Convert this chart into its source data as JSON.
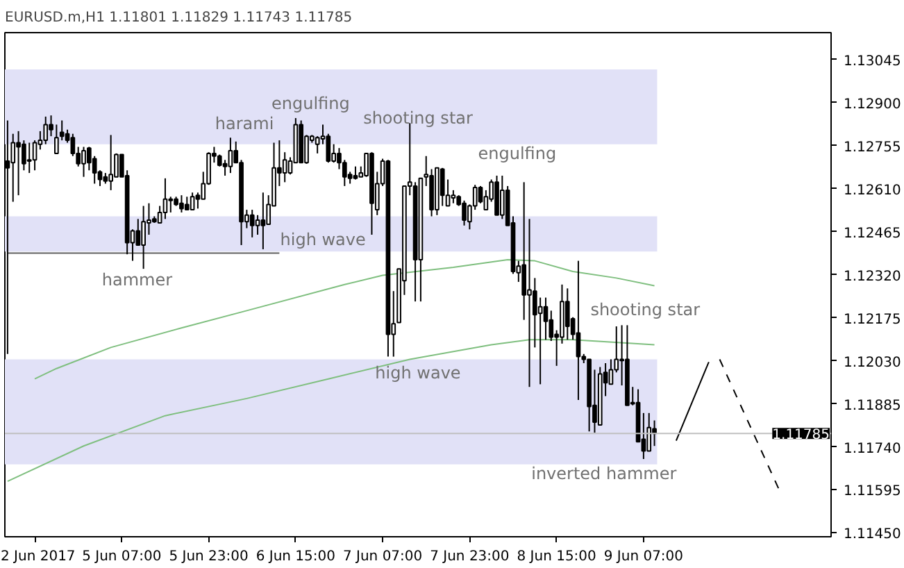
{
  "chart_data": {
    "type": "candlestick",
    "title": "EURUSD.m,H1  1.11801 1.11829 1.11743 1.11785",
    "color": "#000000",
    "categories": [
      null,
      null,
      null,
      null,
      null,
      "2 Jun 2017",
      null,
      null,
      null,
      null,
      null,
      null,
      null,
      null,
      null,
      null,
      null,
      null,
      null,
      null,
      null,
      "5 Jun 07:00",
      null,
      null,
      null,
      null,
      null,
      null,
      null,
      null,
      null,
      null,
      null,
      null,
      null,
      null,
      null,
      "5 Jun 23:00",
      null,
      null,
      null,
      null,
      null,
      null,
      null,
      null,
      null,
      null,
      null,
      null,
      null,
      null,
      null,
      "6 Jun 15:00",
      null,
      null,
      null,
      null,
      null,
      null,
      null,
      null,
      null,
      null,
      null,
      null,
      null,
      null,
      null,
      "7 Jun 07:00",
      null,
      null,
      null,
      null,
      null,
      null,
      null,
      null,
      null,
      null,
      null,
      null,
      null,
      null,
      null,
      "7 Jun 23:00",
      null,
      null,
      null,
      null,
      null,
      null,
      null,
      null,
      null,
      null,
      null,
      null,
      null,
      null,
      null,
      "8 Jun 15:00",
      null,
      null,
      null,
      null,
      null,
      null,
      null,
      null,
      null,
      null,
      null,
      null,
      null,
      null,
      null,
      "9 Jun 07:00",
      null,
      null,
      null,
      null,
      null,
      null,
      null,
      null,
      null,
      null,
      null,
      null,
      null,
      null,
      null,
      null,
      null,
      null,
      null,
      null,
      null,
      null,
      null,
      null,
      null,
      null,
      null,
      null,
      null,
      null,
      null,
      null,
      null,
      null
    ],
    "ohlc": [
      [
        1.12703,
        1.1284,
        1.12053,
        1.1268
      ],
      [
        1.12698,
        1.12795,
        1.12566,
        1.12765
      ],
      [
        1.12765,
        1.12804,
        1.12588,
        1.12751
      ],
      [
        1.1276,
        1.12773,
        1.12672,
        1.12694
      ],
      [
        1.12703,
        1.12765,
        1.12663,
        1.12707
      ],
      [
        1.12707,
        1.12773,
        1.12672,
        1.12765
      ],
      [
        1.1276,
        1.12804,
        1.12742,
        1.12773
      ],
      [
        1.12773,
        1.12853,
        1.1276,
        1.12826
      ],
      [
        1.12826,
        1.12857,
        1.12787,
        1.12809
      ],
      [
        1.12729,
        1.12826,
        1.12729,
        1.12782
      ],
      [
        1.128,
        1.1284,
        1.12773,
        1.12787
      ],
      [
        1.12795,
        1.12809,
        1.12765,
        1.12773
      ],
      [
        1.12782,
        1.12795,
        1.1272,
        1.12729
      ],
      [
        1.12729,
        1.12751,
        1.12685,
        1.12694
      ],
      [
        1.12694,
        1.12751,
        1.1265,
        1.12738
      ],
      [
        1.12747,
        1.12751,
        1.12672,
        1.12698
      ],
      [
        1.12711,
        1.1272,
        1.12627,
        1.12663
      ],
      [
        1.12667,
        1.12672,
        1.12619,
        1.12641
      ],
      [
        1.1265,
        1.12663,
        1.12627,
        1.12636
      ],
      [
        1.12636,
        1.12791,
        1.12605,
        1.12658
      ],
      [
        1.1265,
        1.12729,
        1.1265,
        1.12725
      ],
      [
        1.12725,
        1.12725,
        1.1265,
        1.1265
      ],
      [
        1.12654,
        1.12672,
        1.12389,
        1.12428
      ],
      [
        1.12428,
        1.12473,
        1.12367,
        1.12468
      ],
      [
        1.12468,
        1.12508,
        1.1242,
        1.1242
      ],
      [
        1.1242,
        1.12552,
        1.1234,
        1.12499
      ],
      [
        1.12495,
        1.12561,
        1.12455,
        1.12504
      ],
      [
        1.12508,
        1.12517,
        1.12495,
        1.12499
      ],
      [
        1.12495,
        1.12552,
        1.12495,
        1.1253
      ],
      [
        1.1253,
        1.12645,
        1.12508,
        1.12575
      ],
      [
        1.12575,
        1.12583,
        1.1253,
        1.1257
      ],
      [
        1.12575,
        1.12583,
        1.12552,
        1.12557
      ],
      [
        1.12561,
        1.12588,
        1.1253,
        1.12543
      ],
      [
        1.12557,
        1.12583,
        1.12539,
        1.12539
      ],
      [
        1.12539,
        1.12597,
        1.12539,
        1.12583
      ],
      [
        1.12588,
        1.12597,
        1.12543,
        1.12575
      ],
      [
        1.12575,
        1.12667,
        1.12575,
        1.12627
      ],
      [
        1.12627,
        1.12733,
        1.12623,
        1.12729
      ],
      [
        1.12729,
        1.12751,
        1.12698,
        1.1272
      ],
      [
        1.1272,
        1.12725,
        1.12685,
        1.12689
      ],
      [
        1.12694,
        1.12707,
        1.12654,
        1.12685
      ],
      [
        1.12685,
        1.12782,
        1.12663,
        1.12738
      ],
      [
        1.12738,
        1.12769,
        1.12698,
        1.12698
      ],
      [
        1.12698,
        1.12707,
        1.1242,
        1.12499
      ],
      [
        1.12499,
        1.12539,
        1.12477,
        1.12521
      ],
      [
        1.12521,
        1.12539,
        1.12446,
        1.12486
      ],
      [
        1.12486,
        1.12521,
        1.12455,
        1.12504
      ],
      [
        1.12504,
        1.12597,
        1.12406,
        1.12486
      ],
      [
        1.1249,
        1.12588,
        1.1249,
        1.12557
      ],
      [
        1.12552,
        1.12765,
        1.12552,
        1.1268
      ],
      [
        1.1268,
        1.12773,
        1.12619,
        1.12663
      ],
      [
        1.12663,
        1.12733,
        1.12632,
        1.12707
      ],
      [
        1.12663,
        1.12716,
        1.12658,
        1.12703
      ],
      [
        1.12698,
        1.12848,
        1.12698,
        1.12826
      ],
      [
        1.12826,
        1.1284,
        1.12698,
        1.12698
      ],
      [
        1.12698,
        1.12791,
        1.12694,
        1.12787
      ],
      [
        1.12773,
        1.12791,
        1.12765,
        1.12787
      ],
      [
        1.1276,
        1.12787,
        1.12729,
        1.12782
      ],
      [
        1.12778,
        1.12826,
        1.1276,
        1.12787
      ],
      [
        1.12787,
        1.12795,
        1.12698,
        1.12703
      ],
      [
        1.12703,
        1.1276,
        1.12698,
        1.12729
      ],
      [
        1.12729,
        1.12747,
        1.12676,
        1.12698
      ],
      [
        1.12698,
        1.12707,
        1.12619,
        1.1265
      ],
      [
        1.12658,
        1.12667,
        1.12627,
        1.12645
      ],
      [
        1.12654,
        1.12685,
        1.12641,
        1.12645
      ],
      [
        1.1265,
        1.12685,
        1.1265,
        1.12663
      ],
      [
        1.12654,
        1.12729,
        1.1265,
        1.12729
      ],
      [
        1.12729,
        1.12733,
        1.12455,
        1.12561
      ],
      [
        1.12539,
        1.12667,
        1.12521,
        1.12627
      ],
      [
        1.12627,
        1.12711,
        1.12619,
        1.12703
      ],
      [
        1.12703,
        1.12707,
        1.12044,
        1.12119
      ],
      [
        1.12119,
        1.12265,
        1.12044,
        1.12155
      ],
      [
        1.12159,
        1.1234,
        1.12159,
        1.1234
      ],
      [
        1.123,
        1.12619,
        1.12252,
        1.12619
      ],
      [
        1.12619,
        1.12831,
        1.12588,
        1.12632
      ],
      [
        1.12619,
        1.12632,
        1.1223,
        1.12371
      ],
      [
        1.12371,
        1.12645,
        1.1223,
        1.12645
      ],
      [
        1.1265,
        1.1272,
        1.12619,
        1.12658
      ],
      [
        1.12654,
        1.12676,
        1.12517,
        1.12539
      ],
      [
        1.12539,
        1.1268,
        1.12521,
        1.1268
      ],
      [
        1.12676,
        1.1268,
        1.12552,
        1.12588
      ],
      [
        1.12552,
        1.12641,
        1.12552,
        1.12588
      ],
      [
        1.12579,
        1.12605,
        1.12561,
        1.12588
      ],
      [
        1.12583,
        1.12588,
        1.12552,
        1.12557
      ],
      [
        1.12561,
        1.1257,
        1.12486,
        1.12504
      ],
      [
        1.12499,
        1.12557,
        1.12473,
        1.12552
      ],
      [
        1.12552,
        1.12623,
        1.12539,
        1.12614
      ],
      [
        1.12614,
        1.12619,
        1.12561,
        1.12566
      ],
      [
        1.12539,
        1.12605,
        1.12539,
        1.12583
      ],
      [
        1.12575,
        1.12641,
        1.12566,
        1.12632
      ],
      [
        1.12632,
        1.12654,
        1.12521,
        1.12521
      ],
      [
        1.12521,
        1.12654,
        1.12508,
        1.12605
      ],
      [
        1.12605,
        1.12619,
        1.12486,
        1.12486
      ],
      [
        1.12495,
        1.12517,
        1.12323,
        1.12331
      ],
      [
        1.12327,
        1.12367,
        1.12296,
        1.12349
      ],
      [
        1.12353,
        1.12632,
        1.12168,
        1.12252
      ],
      [
        1.12252,
        1.12508,
        1.11942,
        1.12269
      ],
      [
        1.12265,
        1.12309,
        1.12075,
        1.12185
      ],
      [
        1.1219,
        1.12243,
        1.11951,
        1.12212
      ],
      [
        1.12212,
        1.12243,
        1.12101,
        1.12163
      ],
      [
        1.12168,
        1.12199,
        1.12097,
        1.1211
      ],
      [
        1.12119,
        1.12133,
        1.12013,
        1.1211
      ],
      [
        1.1211,
        1.12287,
        1.12088,
        1.1223
      ],
      [
        1.1223,
        1.12274,
        1.12101,
        1.12146
      ],
      [
        1.12172,
        1.12177,
        1.12101,
        1.12119
      ],
      [
        1.12124,
        1.12367,
        1.11898,
        1.12044
      ],
      [
        1.12044,
        1.12053,
        1.12022,
        1.12035
      ],
      [
        1.12035,
        1.12035,
        1.11792,
        1.11876
      ],
      [
        1.1188,
        1.12,
        1.11788,
        1.11823
      ],
      [
        1.11814,
        1.12009,
        1.11814,
        1.11986
      ],
      [
        1.11991,
        1.12022,
        1.11911,
        1.11956
      ],
      [
        1.11951,
        1.12035,
        1.11951,
        1.12
      ],
      [
        1.12,
        1.12146,
        1.11991,
        1.12035
      ],
      [
        1.12035,
        1.1215,
        1.11947,
        1.12031
      ],
      [
        1.12035,
        1.1215,
        1.1188,
        1.1188
      ],
      [
        1.11885,
        1.11942,
        1.1188,
        1.11889
      ],
      [
        1.11889,
        1.11934,
        1.11757,
        1.11757
      ],
      [
        1.11766,
        1.11854,
        1.11699,
        1.11726
      ],
      [
        1.11726,
        1.11854,
        1.11726,
        1.11805
      ],
      [
        1.11801,
        1.11829,
        1.11743,
        1.11785
      ],
      null,
      null,
      null,
      null,
      null,
      null,
      null,
      null,
      null,
      null,
      null,
      null,
      null,
      null,
      null,
      null,
      null,
      null,
      null,
      null,
      null,
      null,
      null,
      null,
      null,
      null,
      null,
      null,
      null,
      null,
      null,
      null
    ],
    "series": [
      {
        "type": "line",
        "color": "#7fbf7f",
        "values": [
          1.11624,
          null,
          null,
          null,
          null,
          null,
          null,
          null,
          null,
          null,
          null,
          null,
          null,
          null,
          1.11743,
          null,
          null,
          null,
          null,
          null,
          null,
          null,
          null,
          null,
          null,
          null,
          null,
          null,
          null,
          1.11845,
          null,
          null,
          null,
          null,
          null,
          null,
          null,
          null,
          null,
          null,
          null,
          null,
          null,
          null,
          1.11903,
          null,
          null,
          null,
          null,
          null,
          null,
          null,
          null,
          null,
          null,
          null,
          null,
          null,
          null,
          1.11969,
          null,
          null,
          null,
          null,
          null,
          null,
          null,
          null,
          null,
          null,
          null,
          null,
          null,
          null,
          1.12035,
          null,
          null,
          null,
          null,
          null,
          null,
          null,
          null,
          null,
          null,
          null,
          null,
          null,
          null,
          1.12084,
          null,
          null,
          null,
          null,
          null,
          null,
          1.12101,
          null,
          null,
          null,
          null,
          null,
          null,
          null,
          1.12101,
          null,
          null,
          null,
          null,
          null,
          null,
          null,
          null,
          null,
          null,
          null,
          null,
          null,
          null,
          1.12084,
          null,
          null,
          null,
          null,
          null,
          null,
          null,
          null,
          null,
          null,
          null,
          null,
          null,
          null,
          null,
          null,
          null,
          null,
          null,
          null,
          null,
          null,
          null,
          null,
          null,
          null,
          null,
          null,
          null,
          null,
          null,
          null
        ]
      },
      {
        "type": "line",
        "color": "#7fbf7f",
        "values": [
          null,
          null,
          null,
          null,
          null,
          1.11969,
          null,
          null,
          null,
          1.12004,
          null,
          null,
          null,
          null,
          null,
          null,
          null,
          null,
          null,
          1.12075,
          null,
          null,
          null,
          null,
          null,
          null,
          null,
          null,
          null,
          null,
          null,
          null,
          1.12141,
          null,
          null,
          null,
          null,
          null,
          null,
          null,
          null,
          null,
          null,
          null,
          1.12199,
          null,
          null,
          null,
          null,
          null,
          null,
          null,
          null,
          null,
          null,
          null,
          null,
          null,
          null,
          null,
          null,
          null,
          1.12287,
          null,
          null,
          null,
          null,
          null,
          null,
          1.12318,
          null,
          null,
          null,
          null,
          null,
          null,
          null,
          null,
          null,
          null,
          null,
          null,
          1.12345,
          null,
          null,
          null,
          null,
          null,
          null,
          null,
          null,
          null,
          1.12371,
          null,
          null,
          null,
          null,
          1.12367,
          null,
          null,
          null,
          null,
          null,
          null,
          1.12331,
          null,
          null,
          null,
          null,
          null,
          null,
          null,
          1.12309,
          null,
          null,
          null,
          null,
          null,
          null,
          1.12283,
          null,
          null,
          null,
          null,
          null,
          null,
          null,
          null,
          null,
          null,
          null,
          null,
          null,
          null,
          null,
          null,
          null,
          null,
          null,
          null,
          null,
          null,
          null,
          null,
          null,
          null,
          null,
          null,
          null,
          null,
          null,
          null
        ]
      },
      {
        "type": "line",
        "color": "#606060",
        "values": [
          1.12393,
          null,
          null,
          null,
          null,
          null,
          null,
          null,
          null,
          null,
          null,
          null,
          null,
          null,
          null,
          null,
          null,
          null,
          null,
          null,
          null,
          null,
          null,
          null,
          null,
          null,
          null,
          null,
          null,
          null,
          null,
          null,
          null,
          null,
          null,
          null,
          null,
          null,
          null,
          null,
          null,
          null,
          null,
          null,
          null,
          null,
          null,
          null,
          null,
          null,
          1.12393,
          null,
          null,
          null,
          null,
          null,
          null,
          null,
          null,
          null,
          null,
          null,
          null,
          null,
          null,
          null,
          null,
          null,
          null,
          null,
          null,
          null,
          null,
          null,
          null,
          null,
          null,
          null,
          null,
          null,
          null,
          null,
          null,
          null,
          null,
          null,
          null,
          null,
          null,
          null,
          null,
          null,
          null,
          null,
          null,
          null,
          null,
          null,
          null,
          null,
          null,
          null,
          null,
          null,
          null,
          null,
          null,
          null,
          null,
          null,
          null,
          null,
          null,
          null,
          null,
          null,
          null,
          null,
          null,
          null,
          null,
          null,
          null,
          null,
          null,
          null,
          null,
          null,
          null,
          null,
          null,
          null,
          null,
          null,
          null,
          null,
          null,
          null,
          null,
          null,
          null,
          null,
          null,
          null,
          null,
          null,
          null,
          null,
          null,
          null,
          null,
          null
        ]
      },
      {
        "type": "line",
        "color": "#000000",
        "line_style": "solid",
        "values": [
          null,
          null,
          null,
          null,
          null,
          null,
          null,
          null,
          null,
          null,
          null,
          null,
          null,
          null,
          null,
          null,
          null,
          null,
          null,
          null,
          null,
          null,
          null,
          null,
          null,
          null,
          null,
          null,
          null,
          null,
          null,
          null,
          null,
          null,
          null,
          null,
          null,
          null,
          null,
          null,
          null,
          null,
          null,
          null,
          null,
          null,
          null,
          null,
          null,
          null,
          null,
          null,
          null,
          null,
          null,
          null,
          null,
          null,
          null,
          null,
          null,
          null,
          null,
          null,
          null,
          null,
          null,
          null,
          null,
          null,
          null,
          null,
          null,
          null,
          null,
          null,
          null,
          null,
          null,
          null,
          null,
          null,
          null,
          null,
          null,
          null,
          null,
          null,
          null,
          null,
          null,
          null,
          null,
          null,
          null,
          null,
          null,
          null,
          null,
          null,
          null,
          null,
          null,
          null,
          null,
          null,
          null,
          null,
          null,
          null,
          null,
          null,
          null,
          null,
          null,
          null,
          null,
          null,
          null,
          null,
          null,
          null,
          null,
          1.11761,
          null,
          null,
          null,
          null,
          null,
          1.12026,
          null,
          null,
          null,
          null,
          null,
          null,
          null,
          null,
          null,
          null,
          null,
          null,
          null,
          null,
          null,
          null,
          null,
          null,
          null,
          null,
          null,
          null
        ]
      },
      {
        "type": "line",
        "color": "#000000",
        "line_style": "dashed",
        "values": [
          null,
          null,
          null,
          null,
          null,
          null,
          null,
          null,
          null,
          null,
          null,
          null,
          null,
          null,
          null,
          null,
          null,
          null,
          null,
          null,
          null,
          null,
          null,
          null,
          null,
          null,
          null,
          null,
          null,
          null,
          null,
          null,
          null,
          null,
          null,
          null,
          null,
          null,
          null,
          null,
          null,
          null,
          null,
          null,
          null,
          null,
          null,
          null,
          null,
          null,
          null,
          null,
          null,
          null,
          null,
          null,
          null,
          null,
          null,
          null,
          null,
          null,
          null,
          null,
          null,
          null,
          null,
          null,
          null,
          null,
          null,
          null,
          null,
          null,
          null,
          null,
          null,
          null,
          null,
          null,
          null,
          null,
          null,
          null,
          null,
          null,
          null,
          null,
          null,
          null,
          null,
          null,
          null,
          null,
          null,
          null,
          null,
          null,
          null,
          null,
          null,
          null,
          null,
          null,
          null,
          null,
          null,
          null,
          null,
          null,
          null,
          null,
          null,
          null,
          null,
          null,
          null,
          null,
          null,
          null,
          null,
          null,
          null,
          null,
          null,
          null,
          null,
          null,
          null,
          null,
          null,
          1.12035,
          null,
          null,
          null,
          null,
          null,
          null,
          null,
          null,
          null,
          null,
          1.11593,
          null,
          null,
          null,
          null,
          null,
          null,
          null,
          null,
          null
        ]
      }
    ],
    "bands": [
      {
        "axis": "y",
        "from": 1.1276,
        "to": 1.13012,
        "color": "#e1e1f7"
      },
      {
        "axis": "y",
        "from": 1.12398,
        "to": 1.12517,
        "color": "#e1e1f7"
      },
      {
        "axis": "y",
        "from": 1.11681,
        "to": 1.12035,
        "color": "#e1e1f7"
      }
    ],
    "ref_lines": [
      {
        "axis": "y",
        "value": 1.11785,
        "label": "1.11785",
        "color": "#c0c0c0"
      }
    ],
    "annotations": [
      "hammer",
      "harami",
      "engulfing",
      "high wave",
      "shooting star",
      "high wave",
      "engulfing",
      "shooting star",
      "inverted hammer"
    ],
    "ylim": [
      1.11437,
      1.13136
    ],
    "yticks": [
      1.13045,
      {
        "value": 1.129,
        "label": "1.12900"
      },
      1.12755,
      {
        "value": 1.1261,
        "label": "1.12610"
      },
      1.12465,
      {
        "value": 1.1232,
        "label": "1.12320"
      },
      1.12175,
      {
        "value": 1.1203,
        "label": "1.12030"
      },
      1.11885,
      {
        "value": 1.1174,
        "label": "1.11740"
      },
      1.11595,
      {
        "value": 1.1145,
        "label": "1.11450"
      }
    ]
  }
}
